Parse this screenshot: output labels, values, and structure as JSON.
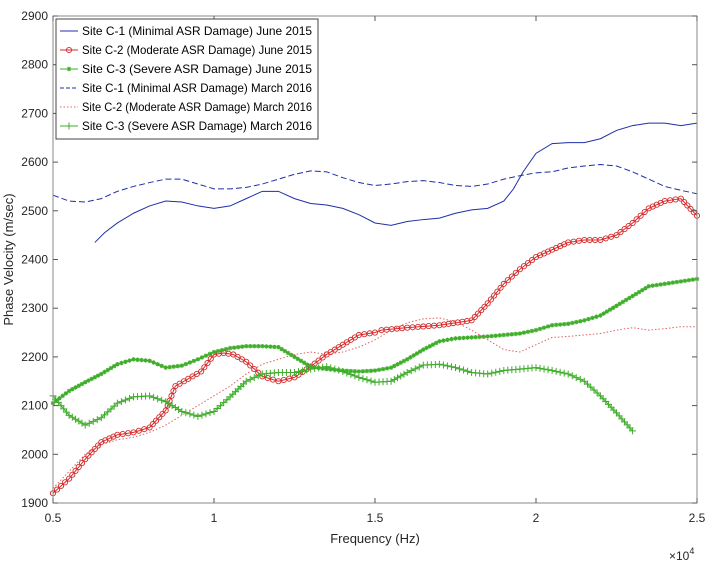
{
  "chart_data": {
    "type": "line",
    "title": "",
    "xlabel": "Frequency (Hz)",
    "ylabel": "Phase Velocity (m/sec)",
    "x_exponent_label": "×10",
    "x_exponent_power": "4",
    "xlim": [
      0.5,
      2.5
    ],
    "ylim": [
      1900,
      2900
    ],
    "xticks": [
      0.5,
      1,
      1.5,
      2,
      2.5
    ],
    "xtick_labels": [
      "0.5",
      "1",
      "1.5",
      "2",
      "2.5"
    ],
    "yticks": [
      1900,
      2000,
      2100,
      2200,
      2300,
      2400,
      2500,
      2600,
      2700,
      2800,
      2900
    ],
    "ytick_labels": [
      "1900",
      "2000",
      "2100",
      "2200",
      "2300",
      "2400",
      "2500",
      "2600",
      "2700",
      "2800",
      "2900"
    ],
    "legend_position": "top-left",
    "series": [
      {
        "name": "Site C-1 (Minimal ASR Damage) June 2015",
        "color": "#1f2fa8",
        "dash": "solid",
        "marker": "none",
        "x": [
          0.63,
          0.66,
          0.7,
          0.75,
          0.8,
          0.85,
          0.9,
          0.95,
          1.0,
          1.05,
          1.1,
          1.15,
          1.2,
          1.25,
          1.3,
          1.35,
          1.4,
          1.45,
          1.5,
          1.55,
          1.6,
          1.65,
          1.7,
          1.75,
          1.8,
          1.85,
          1.9,
          1.93,
          1.96,
          2.0,
          2.05,
          2.1,
          2.15,
          2.2,
          2.25,
          2.3,
          2.35,
          2.4,
          2.45,
          2.5
        ],
        "y": [
          2435,
          2455,
          2475,
          2495,
          2510,
          2520,
          2518,
          2510,
          2505,
          2510,
          2525,
          2540,
          2540,
          2525,
          2515,
          2512,
          2505,
          2492,
          2475,
          2470,
          2478,
          2482,
          2485,
          2495,
          2502,
          2505,
          2520,
          2545,
          2580,
          2618,
          2638,
          2640,
          2640,
          2648,
          2665,
          2675,
          2680,
          2680,
          2675,
          2680
        ]
      },
      {
        "name": "Site C-2 (Moderate ASR Damage) June 2015",
        "color": "#d42a2a",
        "dash": "solid",
        "marker": "circle",
        "x": [
          0.5,
          0.55,
          0.6,
          0.65,
          0.7,
          0.75,
          0.8,
          0.85,
          0.88,
          0.92,
          0.96,
          1.0,
          1.03,
          1.06,
          1.1,
          1.15,
          1.2,
          1.25,
          1.3,
          1.35,
          1.4,
          1.45,
          1.5,
          1.52,
          1.6,
          1.7,
          1.8,
          1.85,
          1.9,
          1.95,
          2.0,
          2.05,
          2.1,
          2.15,
          2.2,
          2.25,
          2.3,
          2.35,
          2.4,
          2.45,
          2.5
        ],
        "y": [
          1920,
          1950,
          1990,
          2025,
          2040,
          2045,
          2055,
          2090,
          2140,
          2155,
          2170,
          2205,
          2208,
          2205,
          2190,
          2160,
          2150,
          2158,
          2180,
          2205,
          2225,
          2245,
          2250,
          2255,
          2260,
          2265,
          2275,
          2310,
          2350,
          2380,
          2405,
          2420,
          2435,
          2440,
          2440,
          2450,
          2475,
          2505,
          2520,
          2525,
          2490
        ]
      },
      {
        "name": "Site C-3 (Severe ASR Damage) June 2015",
        "color": "#3fae2a",
        "dash": "solid",
        "marker": "star",
        "x": [
          0.5,
          0.55,
          0.6,
          0.65,
          0.7,
          0.75,
          0.8,
          0.85,
          0.9,
          0.95,
          1.0,
          1.05,
          1.1,
          1.15,
          1.2,
          1.25,
          1.3,
          1.35,
          1.4,
          1.45,
          1.5,
          1.55,
          1.6,
          1.65,
          1.7,
          1.75,
          1.8,
          1.85,
          1.9,
          1.95,
          2.0,
          2.05,
          2.1,
          2.15,
          2.2,
          2.25,
          2.3,
          2.35,
          2.4,
          2.45,
          2.5
        ],
        "y": [
          2105,
          2130,
          2148,
          2165,
          2185,
          2195,
          2192,
          2178,
          2182,
          2195,
          2210,
          2218,
          2222,
          2222,
          2220,
          2200,
          2180,
          2175,
          2172,
          2170,
          2172,
          2178,
          2195,
          2215,
          2232,
          2238,
          2240,
          2242,
          2245,
          2248,
          2255,
          2265,
          2268,
          2275,
          2285,
          2305,
          2325,
          2345,
          2350,
          2355,
          2360
        ]
      },
      {
        "name": "Site C-1 (Minimal ASR Damage) March 2016",
        "color": "#1f2fa8",
        "dash": "dashed",
        "marker": "none",
        "x": [
          0.5,
          0.55,
          0.6,
          0.65,
          0.7,
          0.75,
          0.8,
          0.85,
          0.9,
          0.95,
          1.0,
          1.05,
          1.1,
          1.15,
          1.2,
          1.25,
          1.3,
          1.35,
          1.4,
          1.45,
          1.5,
          1.55,
          1.6,
          1.65,
          1.7,
          1.75,
          1.8,
          1.85,
          1.9,
          1.95,
          2.0,
          2.05,
          2.1,
          2.15,
          2.2,
          2.25,
          2.3,
          2.35,
          2.4,
          2.45,
          2.5
        ],
        "y": [
          2532,
          2520,
          2518,
          2525,
          2540,
          2550,
          2558,
          2565,
          2565,
          2555,
          2545,
          2545,
          2548,
          2555,
          2565,
          2575,
          2582,
          2580,
          2568,
          2558,
          2552,
          2555,
          2560,
          2562,
          2558,
          2552,
          2550,
          2555,
          2565,
          2572,
          2578,
          2580,
          2588,
          2592,
          2595,
          2592,
          2580,
          2565,
          2550,
          2542,
          2535
        ]
      },
      {
        "name": "Site C-2 (Moderate ASR Damage) March 2016",
        "color": "#e06060",
        "dash": "dotted",
        "marker": "none",
        "x": [
          0.5,
          0.55,
          0.6,
          0.65,
          0.7,
          0.75,
          0.8,
          0.85,
          0.9,
          0.95,
          1.0,
          1.05,
          1.1,
          1.15,
          1.2,
          1.25,
          1.3,
          1.35,
          1.4,
          1.45,
          1.5,
          1.55,
          1.6,
          1.65,
          1.7,
          1.75,
          1.8,
          1.85,
          1.9,
          1.95,
          2.0,
          2.05,
          2.1,
          2.15,
          2.2,
          2.25,
          2.3,
          2.35,
          2.4,
          2.45,
          2.5
        ],
        "y": [
          1930,
          1965,
          2000,
          2020,
          2030,
          2035,
          2045,
          2060,
          2080,
          2100,
          2120,
          2140,
          2165,
          2185,
          2195,
          2205,
          2210,
          2205,
          2210,
          2220,
          2235,
          2255,
          2270,
          2278,
          2280,
          2272,
          2255,
          2235,
          2215,
          2210,
          2225,
          2240,
          2242,
          2245,
          2248,
          2255,
          2260,
          2255,
          2258,
          2262,
          2262
        ]
      },
      {
        "name": "Site C-3 (Severe ASR Damage) March 2016",
        "color": "#3fae2a",
        "dash": "solid",
        "marker": "plus",
        "x": [
          0.5,
          0.55,
          0.6,
          0.65,
          0.7,
          0.75,
          0.8,
          0.85,
          0.9,
          0.95,
          1.0,
          1.05,
          1.1,
          1.15,
          1.2,
          1.25,
          1.3,
          1.35,
          1.4,
          1.45,
          1.5,
          1.55,
          1.6,
          1.65,
          1.7,
          1.75,
          1.8,
          1.85,
          1.9,
          1.95,
          2.0,
          2.05,
          2.1,
          2.15,
          2.2,
          2.25,
          2.3
        ],
        "y": [
          2120,
          2080,
          2060,
          2075,
          2105,
          2118,
          2120,
          2108,
          2088,
          2078,
          2088,
          2118,
          2150,
          2165,
          2168,
          2168,
          2175,
          2180,
          2170,
          2158,
          2148,
          2150,
          2168,
          2183,
          2185,
          2178,
          2168,
          2165,
          2172,
          2175,
          2178,
          2172,
          2165,
          2150,
          2120,
          2085,
          2048
        ]
      }
    ]
  }
}
